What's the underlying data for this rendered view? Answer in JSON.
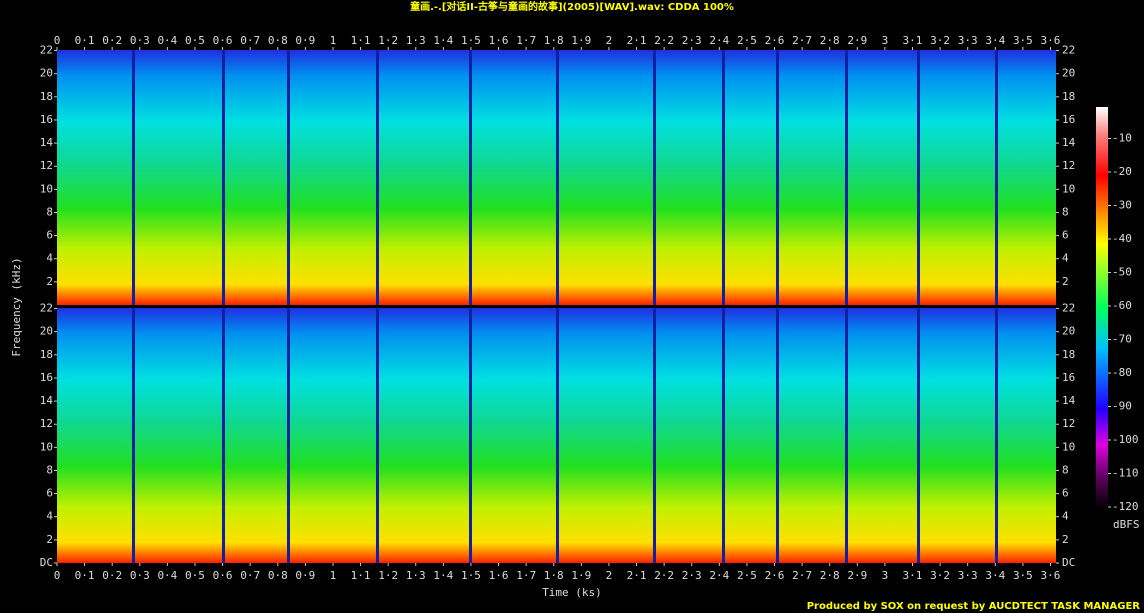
{
  "chart_data": {
    "type": "spectrogram",
    "title": "童画.-.[对话II-古筝与童画的故事](2005)[WAV].wav: CDDA 100%",
    "x_label": "Time (ks)",
    "y_label": "Frequency (kHz)",
    "footer": "Produced by SOX on request by AUCDTECT TASK MANAGER",
    "xlim": [
      0,
      3.62
    ],
    "xticks": [
      0,
      {
        "value": 0.1,
        "label": "0·1"
      },
      {
        "value": 0.2,
        "label": "0·2"
      },
      {
        "value": 0.3,
        "label": "0·3"
      },
      {
        "value": 0.4,
        "label": "0·4"
      },
      {
        "value": 0.5,
        "label": "0·5"
      },
      {
        "value": 0.6,
        "label": "0·6"
      },
      {
        "value": 0.7,
        "label": "0·7"
      },
      {
        "value": 0.8,
        "label": "0·8"
      },
      {
        "value": 0.9,
        "label": "0·9"
      },
      1,
      {
        "value": 1.1,
        "label": "1·1"
      },
      {
        "value": 1.2,
        "label": "1·2"
      },
      {
        "value": 1.3,
        "label": "1·3"
      },
      {
        "value": 1.4,
        "label": "1·4"
      },
      {
        "value": 1.5,
        "label": "1·5"
      },
      {
        "value": 1.6,
        "label": "1·6"
      },
      {
        "value": 1.7,
        "label": "1·7"
      },
      {
        "value": 1.8,
        "label": "1·8"
      },
      {
        "value": 1.9,
        "label": "1·9"
      },
      2,
      {
        "value": 2.1,
        "label": "2·1"
      },
      {
        "value": 2.2,
        "label": "2·2"
      },
      {
        "value": 2.3,
        "label": "2·3"
      },
      {
        "value": 2.4,
        "label": "2·4"
      },
      {
        "value": 2.5,
        "label": "2·5"
      },
      {
        "value": 2.6,
        "label": "2·6"
      },
      {
        "value": 2.7,
        "label": "2·7"
      },
      {
        "value": 2.8,
        "label": "2·8"
      },
      {
        "value": 2.9,
        "label": "2·9"
      },
      3,
      {
        "value": 3.1,
        "label": "3·1"
      },
      {
        "value": 3.2,
        "label": "3·2"
      },
      {
        "value": 3.3,
        "label": "3·3"
      },
      {
        "value": 3.4,
        "label": "3·4"
      },
      {
        "value": 3.5,
        "label": "3·5"
      },
      {
        "value": 3.6,
        "label": "3·6"
      }
    ],
    "ylim": [
      0,
      22.05
    ],
    "channels": [
      {
        "yticks": [
          2,
          4,
          6,
          8,
          10,
          12,
          14,
          16,
          18,
          20,
          22
        ]
      },
      {
        "yticks": [
          {
            "value": 0,
            "label": "DC"
          },
          2,
          4,
          6,
          8,
          10,
          12,
          14,
          16,
          18,
          20,
          22
        ]
      }
    ],
    "colorbar": {
      "label": "dBFS",
      "lim": [
        -120,
        0
      ],
      "ticks": [
        -10,
        -20,
        -30,
        -40,
        -50,
        -60,
        -70,
        -80,
        -90,
        -100,
        -110,
        -120
      ]
    }
  }
}
